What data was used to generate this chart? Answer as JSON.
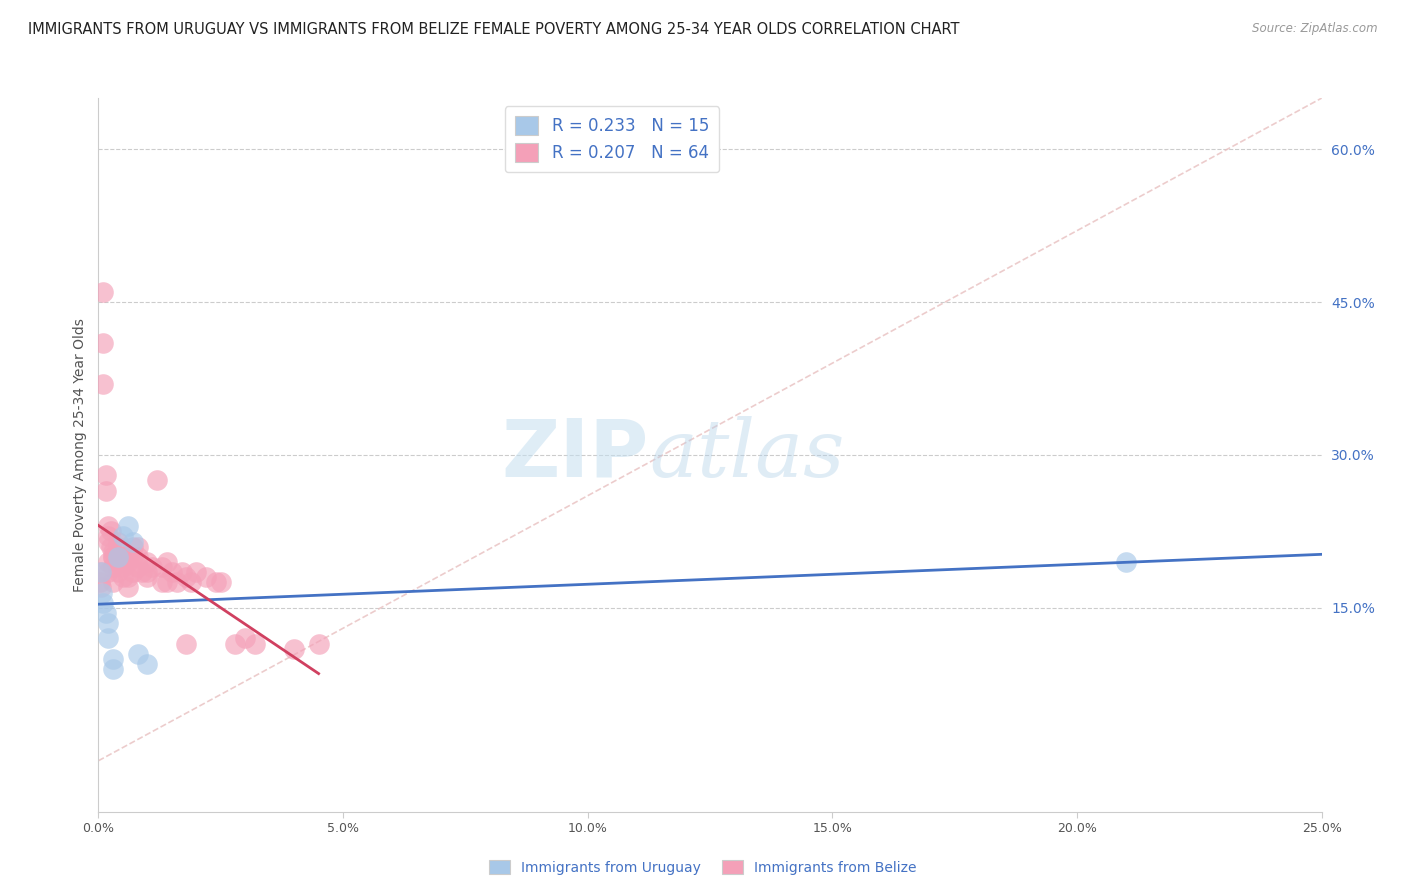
{
  "title": "IMMIGRANTS FROM URUGUAY VS IMMIGRANTS FROM BELIZE FEMALE POVERTY AMONG 25-34 YEAR OLDS CORRELATION CHART",
  "source": "Source: ZipAtlas.com",
  "ylabel": "Female Poverty Among 25-34 Year Olds",
  "xlim": [
    0.0,
    0.25
  ],
  "ylim": [
    -0.05,
    0.65
  ],
  "xticks": [
    0.0,
    0.05,
    0.1,
    0.15,
    0.2,
    0.25
  ],
  "xticklabels": [
    "0.0%",
    "5.0%",
    "10.0%",
    "15.0%",
    "20.0%",
    "25.0%"
  ],
  "yticks_right": [
    0.15,
    0.3,
    0.45,
    0.6
  ],
  "ytick_labels_right": [
    "15.0%",
    "30.0%",
    "45.0%",
    "60.0%"
  ],
  "legend_r_uruguay": "R = 0.233",
  "legend_n_uruguay": "N = 15",
  "legend_r_belize": "R = 0.207",
  "legend_n_belize": "N = 64",
  "watermark_zip": "ZIP",
  "watermark_atlas": "atlas",
  "color_uruguay": "#a8c8e8",
  "color_belize": "#f4a0b8",
  "color_uruguay_line": "#4472c4",
  "color_belize_line": "#d04060",
  "color_diagonal": "#e8c0c0",
  "background": "#ffffff",
  "grid_color": "#cccccc",
  "uruguay_x": [
    0.0005,
    0.0008,
    0.001,
    0.0015,
    0.002,
    0.002,
    0.003,
    0.003,
    0.004,
    0.005,
    0.006,
    0.007,
    0.008,
    0.01,
    0.21
  ],
  "uruguay_y": [
    0.185,
    0.165,
    0.155,
    0.145,
    0.135,
    0.12,
    0.1,
    0.09,
    0.2,
    0.22,
    0.23,
    0.215,
    0.105,
    0.095,
    0.195
  ],
  "belize_x": [
    0.0003,
    0.0005,
    0.0005,
    0.001,
    0.001,
    0.001,
    0.0015,
    0.0015,
    0.002,
    0.002,
    0.002,
    0.002,
    0.002,
    0.0025,
    0.0025,
    0.003,
    0.003,
    0.003,
    0.003,
    0.003,
    0.004,
    0.004,
    0.004,
    0.004,
    0.005,
    0.005,
    0.005,
    0.005,
    0.005,
    0.006,
    0.006,
    0.006,
    0.006,
    0.007,
    0.007,
    0.007,
    0.008,
    0.008,
    0.008,
    0.009,
    0.01,
    0.01,
    0.01,
    0.011,
    0.012,
    0.013,
    0.013,
    0.014,
    0.014,
    0.015,
    0.016,
    0.017,
    0.018,
    0.018,
    0.019,
    0.02,
    0.022,
    0.024,
    0.025,
    0.028,
    0.03,
    0.032,
    0.04,
    0.045
  ],
  "belize_y": [
    0.175,
    0.185,
    0.17,
    0.46,
    0.41,
    0.37,
    0.28,
    0.265,
    0.23,
    0.22,
    0.215,
    0.195,
    0.185,
    0.225,
    0.21,
    0.205,
    0.2,
    0.2,
    0.19,
    0.175,
    0.215,
    0.21,
    0.195,
    0.185,
    0.2,
    0.2,
    0.2,
    0.19,
    0.18,
    0.2,
    0.195,
    0.18,
    0.17,
    0.21,
    0.2,
    0.185,
    0.21,
    0.2,
    0.19,
    0.185,
    0.195,
    0.185,
    0.18,
    0.19,
    0.275,
    0.19,
    0.175,
    0.195,
    0.175,
    0.185,
    0.175,
    0.185,
    0.18,
    0.115,
    0.175,
    0.185,
    0.18,
    0.175,
    0.175,
    0.115,
    0.12,
    0.115,
    0.11,
    0.115
  ]
}
